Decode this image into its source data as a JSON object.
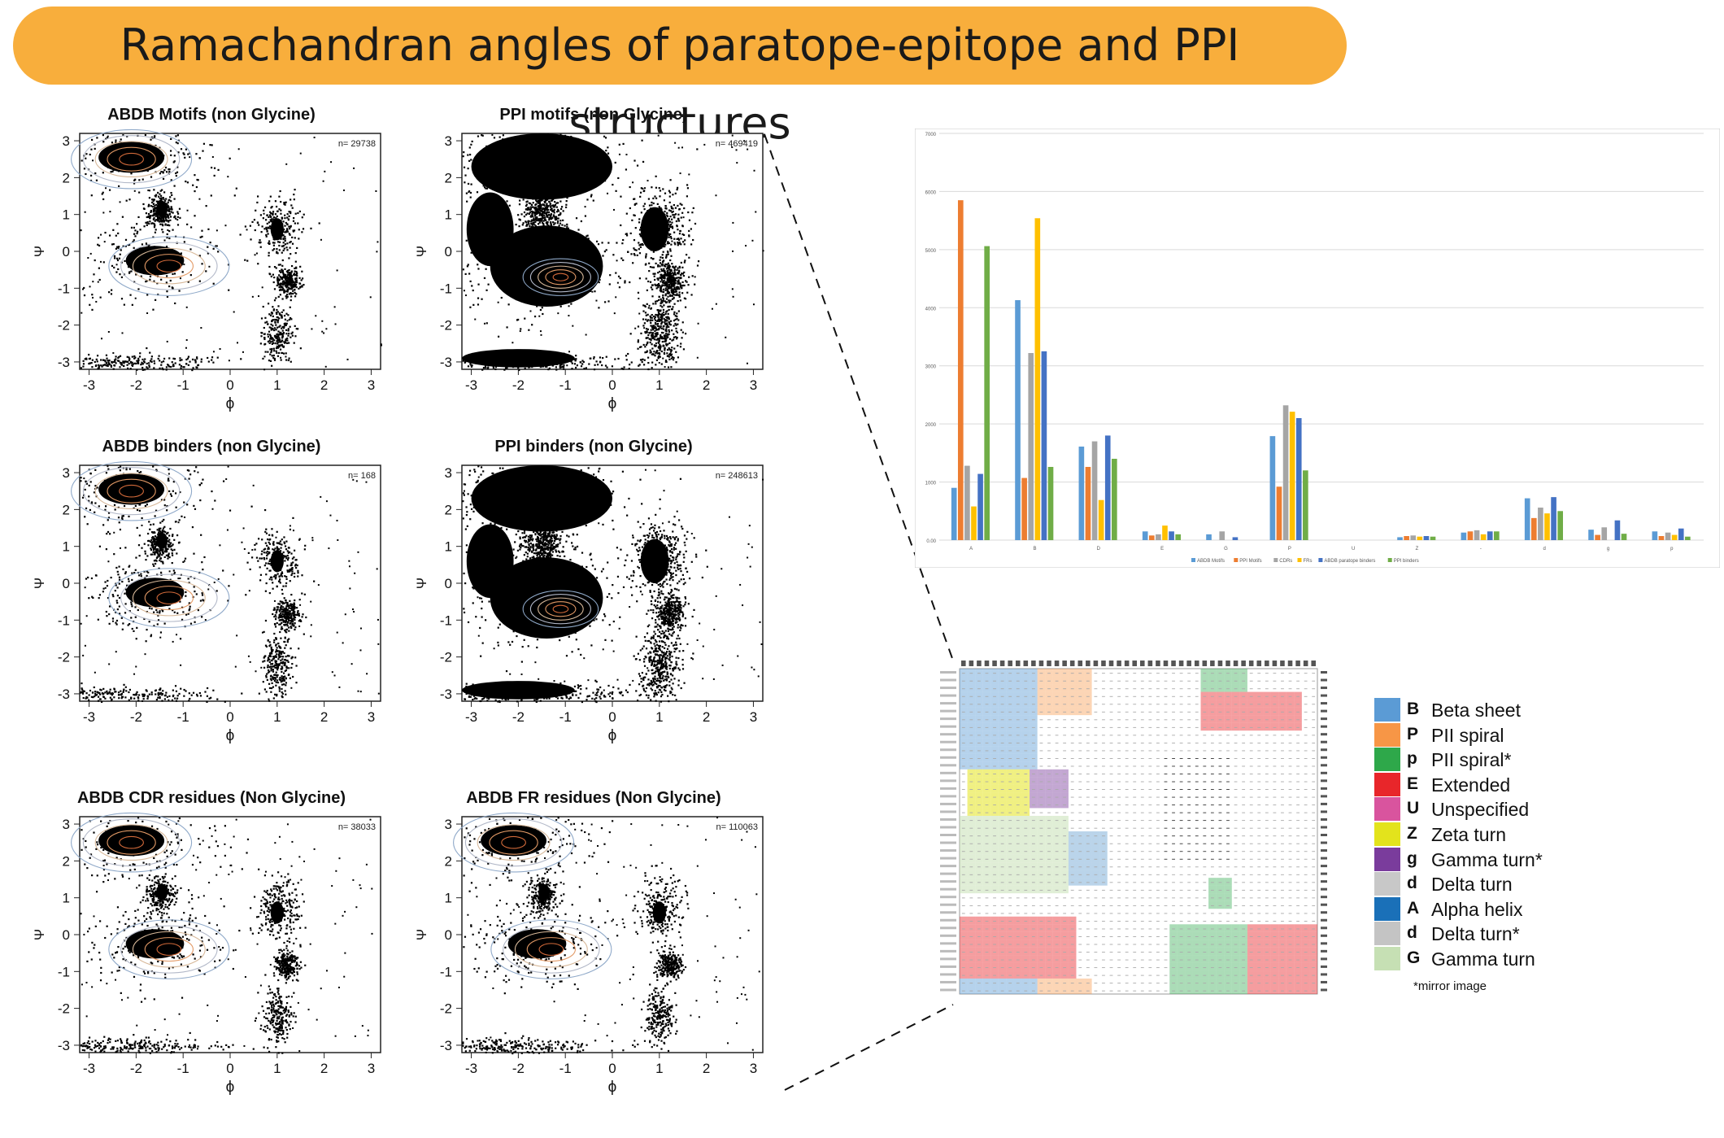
{
  "banner": {
    "title": "Ramachandran angles of paratope-epitope and PPI structures"
  },
  "plots": [
    {
      "title": "ABDB Motifs (non Glycine)",
      "n_label": "n= 29738",
      "xlabel": "ϕ",
      "ylabel": "Ψ"
    },
    {
      "title": "PPI motifs (non Glycine)",
      "n_label": "n= 469419",
      "xlabel": "ϕ",
      "ylabel": "Ψ"
    },
    {
      "title": "ABDB binders (non Glycine)",
      "n_label": "n= 168",
      "xlabel": "ϕ",
      "ylabel": "Ψ"
    },
    {
      "title": "PPI binders (non Glycine)",
      "n_label": "n= 248613",
      "xlabel": "ϕ",
      "ylabel": "Ψ"
    },
    {
      "title": "ABDB CDR residues (Non Glycine)",
      "n_label": "n= 38033",
      "xlabel": "ϕ",
      "ylabel": "Ψ"
    },
    {
      "title": "ABDB FR residues (Non Glycine)",
      "n_label": "n= 110063",
      "xlabel": "ϕ",
      "ylabel": "Ψ"
    }
  ],
  "chart_data": [
    {
      "type": "scatter",
      "title": "ABDB Motifs (non Glycine)",
      "xlabel": "ϕ",
      "ylabel": "Ψ",
      "xlim": [
        -3.2,
        3.2
      ],
      "ylim": [
        -3.2,
        3.2
      ],
      "xticks": [
        -3,
        -2,
        -1,
        0,
        1,
        2,
        3
      ],
      "yticks": [
        -3,
        -2,
        -1,
        0,
        1,
        2,
        3
      ],
      "point_count": 29738,
      "style": "density scatter with contour lines"
    },
    {
      "type": "scatter",
      "title": "PPI motifs (non Glycine)",
      "xlabel": "ϕ",
      "ylabel": "Ψ",
      "xlim": [
        -3.2,
        3.2
      ],
      "ylim": [
        -3.2,
        3.2
      ],
      "xticks": [
        -3,
        -2,
        -1,
        0,
        1,
        2,
        3
      ],
      "yticks": [
        -3,
        -2,
        -1,
        0,
        1,
        2,
        3
      ],
      "point_count": 469419,
      "style": "density scatter with contour lines"
    },
    {
      "type": "scatter",
      "title": "ABDB binders (non Glycine)",
      "xlabel": "ϕ",
      "ylabel": "Ψ",
      "xlim": [
        -3.2,
        3.2
      ],
      "ylim": [
        -3.2,
        3.2
      ],
      "xticks": [
        -3,
        -2,
        -1,
        0,
        1,
        2,
        3
      ],
      "yticks": [
        -3,
        -2,
        -1,
        0,
        1,
        2,
        3
      ],
      "point_count": 168,
      "style": "density scatter with contour lines"
    },
    {
      "type": "scatter",
      "title": "PPI binders (non Glycine)",
      "xlabel": "ϕ",
      "ylabel": "Ψ",
      "xlim": [
        -3.2,
        3.2
      ],
      "ylim": [
        -3.2,
        3.2
      ],
      "xticks": [
        -3,
        -2,
        -1,
        0,
        1,
        2,
        3
      ],
      "yticks": [
        -3,
        -2,
        -1,
        0,
        1,
        2,
        3
      ],
      "point_count": 248613,
      "style": "density scatter with contour lines"
    },
    {
      "type": "scatter",
      "title": "ABDB CDR residues (Non Glycine)",
      "xlabel": "ϕ",
      "ylabel": "Ψ",
      "xlim": [
        -3.2,
        3.2
      ],
      "ylim": [
        -3.2,
        3.2
      ],
      "xticks": [
        -3,
        -2,
        -1,
        0,
        1,
        2,
        3
      ],
      "yticks": [
        -3,
        -2,
        -1,
        0,
        1,
        2,
        3
      ],
      "point_count": 38033,
      "style": "density scatter with contour lines"
    },
    {
      "type": "scatter",
      "title": "ABDB FR residues (Non Glycine)",
      "xlabel": "ϕ",
      "ylabel": "Ψ",
      "xlim": [
        -3.2,
        3.2
      ],
      "ylim": [
        -3.2,
        3.2
      ],
      "xticks": [
        -3,
        -2,
        -1,
        0,
        1,
        2,
        3
      ],
      "yticks": [
        -3,
        -2,
        -1,
        0,
        1,
        2,
        3
      ],
      "point_count": 110063,
      "style": "density scatter with contour lines"
    },
    {
      "type": "bar",
      "title": "",
      "categories": [
        "A",
        "B",
        "D",
        "E",
        "G",
        "P",
        "U",
        "Z",
        "-",
        "d",
        "g",
        "p"
      ],
      "ylim": [
        0,
        7000
      ],
      "yticks": [
        "0.00",
        "1000",
        "2000",
        "3000",
        "4000",
        "5000",
        "6000",
        "7000"
      ],
      "legend_position": "bottom",
      "series": [
        {
          "name": "ABDB Motifs",
          "color": "#5b9bd5",
          "values": [
            900,
            4130,
            1610,
            150,
            100,
            1790,
            0,
            50,
            130,
            720,
            180,
            150
          ]
        },
        {
          "name": "PPI Motifs",
          "color": "#ed7d31",
          "values": [
            5850,
            1070,
            1260,
            80,
            0,
            920,
            0,
            70,
            150,
            380,
            90,
            70
          ]
        },
        {
          "name": "CDRs",
          "color": "#a5a5a5",
          "values": [
            1280,
            3220,
            1700,
            100,
            150,
            2320,
            0,
            80,
            170,
            560,
            220,
            130
          ]
        },
        {
          "name": "FRs",
          "color": "#ffc000",
          "values": [
            580,
            5540,
            690,
            250,
            0,
            2210,
            0,
            60,
            100,
            460,
            0,
            90
          ]
        },
        {
          "name": "ABDB paratope binders",
          "color": "#4472c4",
          "values": [
            1140,
            3250,
            1800,
            150,
            50,
            2100,
            0,
            70,
            150,
            740,
            340,
            200
          ]
        },
        {
          "name": "PPI binders",
          "color": "#70ad47",
          "values": [
            5060,
            1260,
            1400,
            100,
            0,
            1200,
            0,
            60,
            150,
            500,
            110,
            60
          ]
        }
      ]
    }
  ],
  "legend": {
    "items": [
      {
        "code": "B",
        "label": "Beta sheet",
        "color": "#5b9bd5"
      },
      {
        "code": "P",
        "label": "PII spiral",
        "color": "#f79646"
      },
      {
        "code": "p",
        "label": "PII spiral*",
        "color": "#2ea84a"
      },
      {
        "code": "E",
        "label": "Extended",
        "color": "#e8262a"
      },
      {
        "code": "U",
        "label": "Unspecified",
        "color": "#d9549e"
      },
      {
        "code": "Z",
        "label": "Zeta turn",
        "color": "#e3e31c"
      },
      {
        "code": "g",
        "label": "Gamma turn*",
        "color": "#7a3c9c"
      },
      {
        "code": "d",
        "label": "Delta turn",
        "color": "#c8c8c8"
      },
      {
        "code": "A",
        "label": "Alpha helix",
        "color": "#1a70b8"
      },
      {
        "code": "d",
        "label": "Delta turn*",
        "color": "#c4c4c4"
      },
      {
        "code": "G",
        "label": "Gamma turn",
        "color": "#c6e0b4"
      }
    ],
    "note": "*mirror image"
  }
}
